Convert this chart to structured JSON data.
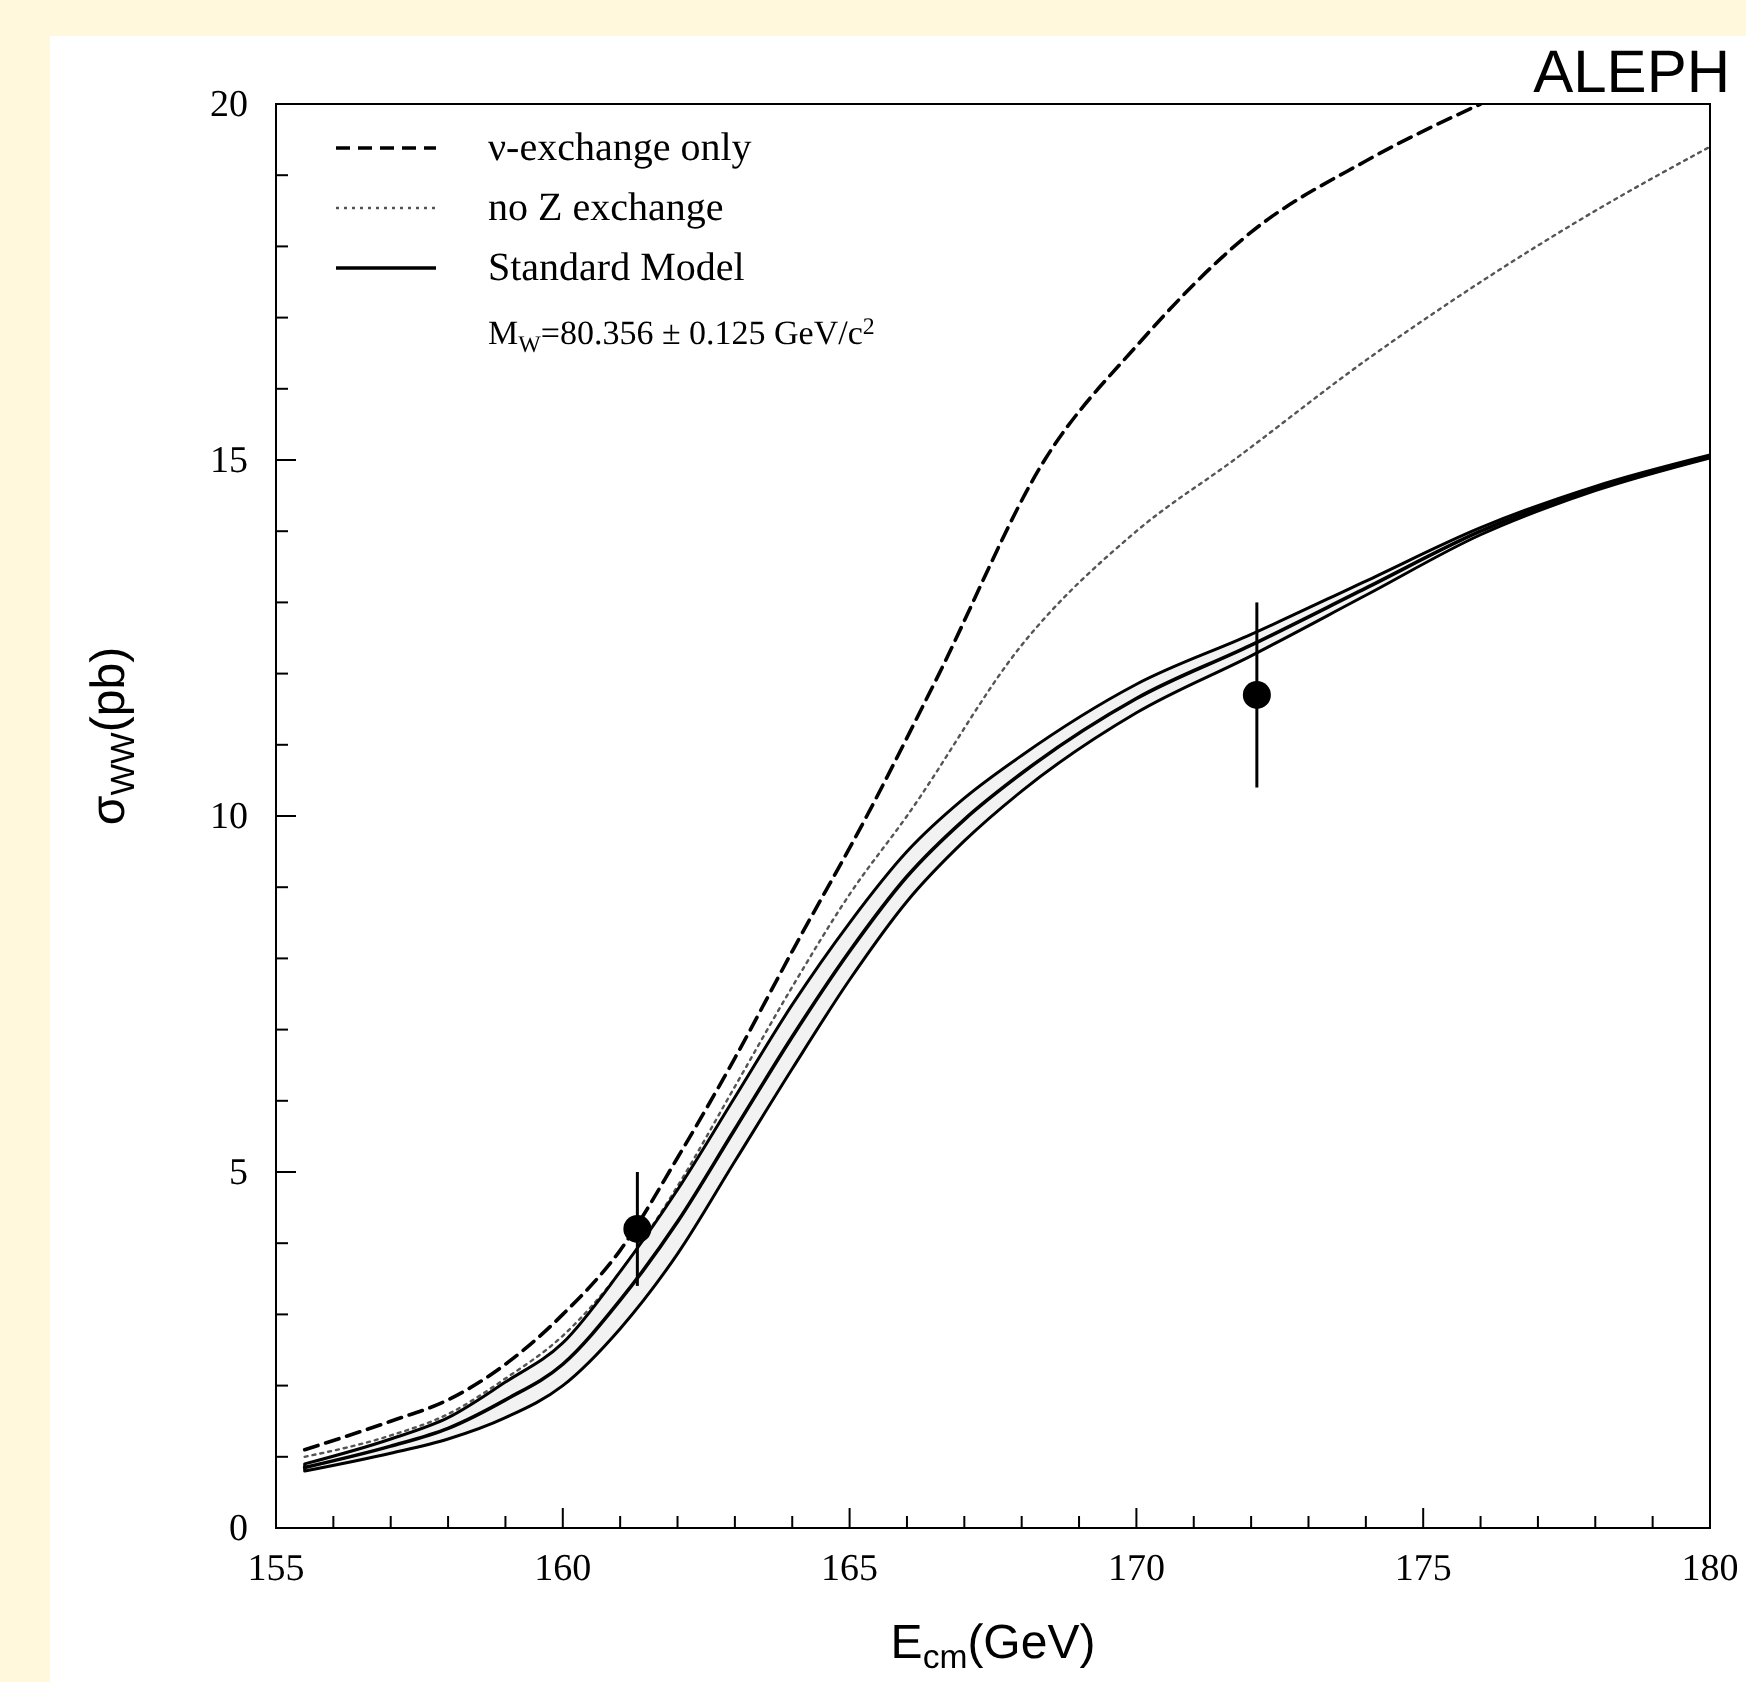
{
  "chart_data": {
    "type": "line",
    "xlabel": "E$_{cm}$(GeV)",
    "ylabel": "σ$_{WW}$(pb)",
    "annotations": [
      "ALEPH",
      "M$_{W}$=80.356 ± 0.125 GeV/c$^{2}$"
    ],
    "xlim": [
      155,
      180
    ],
    "ylim": [
      0,
      20
    ],
    "xticks": [
      155,
      {
        "value": 156,
        "label": null
      },
      {
        "value": 157,
        "label": null
      },
      {
        "value": 158,
        "label": null
      },
      {
        "value": 159,
        "label": null
      },
      160,
      {
        "value": 161,
        "label": null
      },
      {
        "value": 162,
        "label": null
      },
      {
        "value": 163,
        "label": null
      },
      {
        "value": 164,
        "label": null
      },
      165,
      {
        "value": 166,
        "label": null
      },
      {
        "value": 167,
        "label": null
      },
      {
        "value": 168,
        "label": null
      },
      {
        "value": 169,
        "label": null
      },
      170,
      {
        "value": 171,
        "label": null
      },
      {
        "value": 172,
        "label": null
      },
      {
        "value": 173,
        "label": null
      },
      {
        "value": 174,
        "label": null
      },
      175,
      {
        "value": 176,
        "label": null
      },
      {
        "value": 177,
        "label": null
      },
      {
        "value": 178,
        "label": null
      },
      {
        "value": 179,
        "label": null
      },
      180
    ],
    "yticks": [
      0,
      {
        "value": 1,
        "label": null
      },
      {
        "value": 2,
        "label": null
      },
      {
        "value": 3,
        "label": null
      },
      {
        "value": 4,
        "label": null
      },
      5,
      {
        "value": 6,
        "label": null
      },
      {
        "value": 7,
        "label": null
      },
      {
        "value": 8,
        "label": null
      },
      {
        "value": 9,
        "label": null
      },
      10,
      {
        "value": 11,
        "label": null
      },
      {
        "value": 12,
        "label": null
      },
      {
        "value": 13,
        "label": null
      },
      {
        "value": 14,
        "label": null
      },
      15,
      {
        "value": 16,
        "label": null
      },
      {
        "value": 17,
        "label": null
      },
      {
        "value": 18,
        "label": null
      },
      {
        "value": 19,
        "label": null
      },
      20
    ],
    "grid": false,
    "legend": "top left",
    "series": [
      {
        "name": "ν-exchange only",
        "color": "#000000",
        "line_style": "dashed",
        "x": [
          155.5,
          157,
          158,
          159,
          160,
          161,
          162,
          163,
          164,
          165.3,
          166.5,
          168.4,
          170,
          172,
          174,
          176
        ],
        "values": [
          1.1,
          1.5,
          1.8,
          2.3,
          3.0,
          3.9,
          5.2,
          6.6,
          8.1,
          10,
          11.9,
          15,
          16.6,
          18.2,
          19.2,
          20
        ]
      },
      {
        "name": "no Z exchange",
        "color": "#555555",
        "line_style": "dotted",
        "x": [
          155.5,
          157,
          158,
          159,
          160,
          161,
          162,
          163,
          164,
          165,
          166,
          168,
          170,
          171.7,
          174,
          176,
          178,
          180
        ],
        "values": [
          1.0,
          1.3,
          1.6,
          2.1,
          2.7,
          3.6,
          4.8,
          6.2,
          7.6,
          8.9,
          10,
          12.4,
          14.0,
          15,
          16.4,
          17.5,
          18.5,
          19.4
        ]
      },
      {
        "name": "Standard Model",
        "color": "#000000",
        "line_style": "solid",
        "x": [
          155.5,
          157,
          158,
          159,
          160,
          161,
          162,
          163,
          164,
          165,
          166,
          167,
          168,
          170,
          172,
          174,
          176,
          178,
          180
        ],
        "values": [
          0.85,
          1.15,
          1.4,
          1.8,
          2.3,
          3.2,
          4.3,
          5.6,
          6.9,
          8.1,
          9.15,
          9.95,
          10.6,
          11.65,
          12.4,
          13.2,
          14.0,
          14.6,
          15.05
        ],
        "lower": [
          0.8,
          1.05,
          1.25,
          1.55,
          2.0,
          2.8,
          3.85,
          5.15,
          6.45,
          7.7,
          8.8,
          9.65,
          10.35,
          11.45,
          12.25,
          13.1,
          13.95,
          14.57,
          15.03
        ],
        "upper": [
          0.9,
          1.25,
          1.55,
          2.05,
          2.6,
          3.6,
          4.75,
          6.05,
          7.35,
          8.5,
          9.5,
          10.25,
          10.85,
          11.85,
          12.55,
          13.3,
          14.05,
          14.63,
          15.07
        ]
      },
      {
        "name": null,
        "type": "scatter",
        "color": "#000000",
        "marker": "circle",
        "x": [
          161.3,
          172.1
        ],
        "values": [
          4.2,
          11.7
        ],
        "errors": [
          0.8,
          1.3
        ]
      }
    ]
  }
}
